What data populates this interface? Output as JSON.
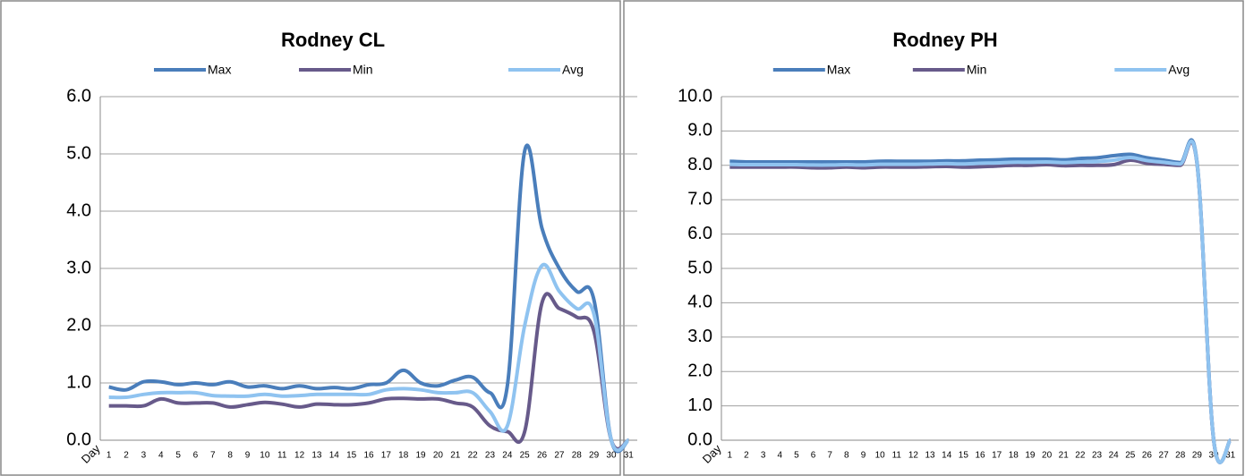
{
  "chart_data": [
    {
      "type": "line",
      "title": "Rodney CL",
      "x_label": "Day",
      "categories": [
        "1",
        "2",
        "3",
        "4",
        "5",
        "6",
        "7",
        "8",
        "9",
        "10",
        "11",
        "12",
        "13",
        "14",
        "15",
        "16",
        "17",
        "18",
        "19",
        "20",
        "21",
        "22",
        "23",
        "24",
        "25",
        "26",
        "27",
        "28",
        "29",
        "30",
        "31"
      ],
      "series": [
        {
          "name": "Max",
          "color": "#4a7ebb",
          "values": [
            0.93,
            0.88,
            1.02,
            1.02,
            0.97,
            1.0,
            0.97,
            1.02,
            0.93,
            0.95,
            0.9,
            0.95,
            0.9,
            0.92,
            0.9,
            0.97,
            1.0,
            1.22,
            1.0,
            0.95,
            1.05,
            1.1,
            0.83,
            0.95,
            5.05,
            3.7,
            3.0,
            2.6,
            2.45,
            0,
            0
          ]
        },
        {
          "name": "Min",
          "color": "#675a8a",
          "values": [
            0.6,
            0.6,
            0.6,
            0.72,
            0.65,
            0.65,
            0.65,
            0.58,
            0.62,
            0.66,
            0.63,
            0.58,
            0.63,
            0.62,
            0.62,
            0.65,
            0.72,
            0.73,
            0.72,
            0.72,
            0.65,
            0.58,
            0.25,
            0.15,
            0.15,
            2.4,
            2.3,
            2.15,
            1.9,
            0,
            0
          ]
        },
        {
          "name": "Avg",
          "color": "#8fc3f0",
          "values": [
            0.75,
            0.75,
            0.8,
            0.83,
            0.83,
            0.83,
            0.78,
            0.77,
            0.77,
            0.8,
            0.77,
            0.78,
            0.8,
            0.8,
            0.8,
            0.8,
            0.88,
            0.9,
            0.88,
            0.83,
            0.83,
            0.83,
            0.5,
            0.25,
            2.0,
            3.05,
            2.6,
            2.3,
            2.2,
            0,
            0
          ]
        }
      ],
      "ylim": [
        0,
        6
      ],
      "yticks": [
        {
          "value": 0,
          "label": "0.0"
        },
        {
          "value": 1,
          "label": "1.0"
        },
        {
          "value": 2,
          "label": "2.0"
        },
        {
          "value": 3,
          "label": "3.0"
        },
        {
          "value": 4,
          "label": "4.0"
        },
        {
          "value": 5,
          "label": "5.0"
        },
        {
          "value": 6,
          "label": "6.0"
        }
      ],
      "grid": true,
      "legend": "top"
    },
    {
      "type": "line",
      "title": "Rodney PH",
      "x_label": "Day",
      "categories": [
        "1",
        "2",
        "3",
        "4",
        "5",
        "6",
        "7",
        "8",
        "9",
        "10",
        "11",
        "12",
        "13",
        "14",
        "15",
        "16",
        "17",
        "18",
        "19",
        "20",
        "21",
        "22",
        "23",
        "24",
        "25",
        "26",
        "27",
        "28",
        "29",
        "30",
        "31"
      ],
      "series": [
        {
          "name": "Max",
          "color": "#4a7ebb",
          "values": [
            8.12,
            8.1,
            8.1,
            8.1,
            8.1,
            8.1,
            8.1,
            8.1,
            8.1,
            8.12,
            8.12,
            8.12,
            8.12,
            8.13,
            8.13,
            8.15,
            8.16,
            8.18,
            8.18,
            8.18,
            8.16,
            8.2,
            8.22,
            8.28,
            8.32,
            8.22,
            8.15,
            8.08,
            8.1,
            0,
            0
          ]
        },
        {
          "name": "Min",
          "color": "#675a8a",
          "values": [
            7.95,
            7.95,
            7.95,
            7.95,
            7.95,
            7.93,
            7.93,
            7.95,
            7.93,
            7.95,
            7.95,
            7.95,
            7.96,
            7.97,
            7.95,
            7.96,
            7.98,
            8.0,
            8.0,
            8.02,
            7.99,
            8.0,
            8.0,
            8.02,
            8.15,
            8.06,
            8.03,
            8.0,
            8.05,
            0,
            0
          ]
        },
        {
          "name": "Avg",
          "color": "#8fc3f0",
          "values": [
            8.03,
            8.02,
            8.02,
            8.02,
            8.02,
            8.01,
            8.01,
            8.02,
            8.01,
            8.03,
            8.03,
            8.03,
            8.04,
            8.05,
            8.04,
            8.06,
            8.07,
            8.09,
            8.09,
            8.1,
            8.08,
            8.1,
            8.11,
            8.15,
            8.23,
            8.14,
            8.09,
            8.04,
            8.07,
            0,
            0
          ]
        }
      ],
      "ylim": [
        0,
        10
      ],
      "yticks": [
        {
          "value": 0,
          "label": "0.0"
        },
        {
          "value": 1,
          "label": "1.0"
        },
        {
          "value": 2,
          "label": "2.0"
        },
        {
          "value": 3,
          "label": "3.0"
        },
        {
          "value": 4,
          "label": "4.0"
        },
        {
          "value": 5,
          "label": "5.0"
        },
        {
          "value": 6,
          "label": "6.0"
        },
        {
          "value": 7,
          "label": "7.0"
        },
        {
          "value": 8,
          "label": "8.0"
        },
        {
          "value": 9,
          "label": "9.0"
        },
        {
          "value": 10,
          "label": "10.0"
        }
      ],
      "grid": true,
      "legend": "top"
    }
  ]
}
